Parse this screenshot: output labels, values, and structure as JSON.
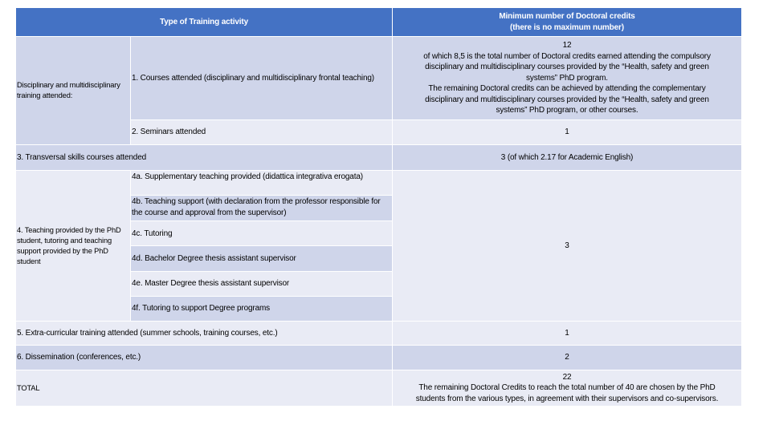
{
  "header": {
    "col1": "Type of Training activity",
    "col2_lines": [
      "Minimum number of Doctoral credits",
      "(there is no maximum number)"
    ]
  },
  "rows": {
    "disciplinary_group": "Disciplinary and multidisciplinary training attended:",
    "courses": "1. Courses attended (disciplinary and multidisciplinary frontal teaching)",
    "courses_credits_lines": [
      "12",
      "of which 8,5 is the total number of Doctoral credits earned attending the compulsory",
      "disciplinary and multidisciplinary courses provided by the “Health, safety and green",
      "systems” PhD program.",
      "The remaining Doctoral credits can be achieved by attending the complementary",
      "disciplinary and multidisciplinary courses provided by the “Health, safety and green",
      "systems” PhD program, or other courses."
    ],
    "seminars": "2. Seminars attended",
    "seminars_credits": "1",
    "transversal": "3. Transversal skills courses attended",
    "transversal_credits": "3 (of which 2.17 for Academic English)",
    "teaching_group": "4. Teaching provided by the PhD student, tutoring and teaching support provided by the PhD student",
    "teaching_items": [
      "4a. Supplementary teaching provided (didattica integrativa erogata)",
      "4b. Teaching support (with declaration from the professor responsible for the course and approval from the supervisor)",
      "4c. Tutoring",
      "4d. Bachelor Degree thesis assistant supervisor",
      "4e. Master Degree thesis assistant supervisor",
      "4f. Tutoring to support Degree programs"
    ],
    "teaching_credits": "3",
    "extracurricular": "5. Extra-curricular training attended (summer schools, training courses, etc.)",
    "extracurricular_credits": "1",
    "dissemination": "6. Dissemination (conferences, etc.)",
    "dissemination_credits": "2",
    "total": "TOTAL",
    "total_credits_lines": [
      "22",
      "The remaining Doctoral Credits to reach the total number of 40 are chosen by the PhD",
      "students from the various types, in agreement with their supervisors and co-supervisors."
    ]
  },
  "colors": {
    "header": "#4472c4",
    "band_dark": "#cfd5ea",
    "band_light": "#e9ebf5"
  }
}
